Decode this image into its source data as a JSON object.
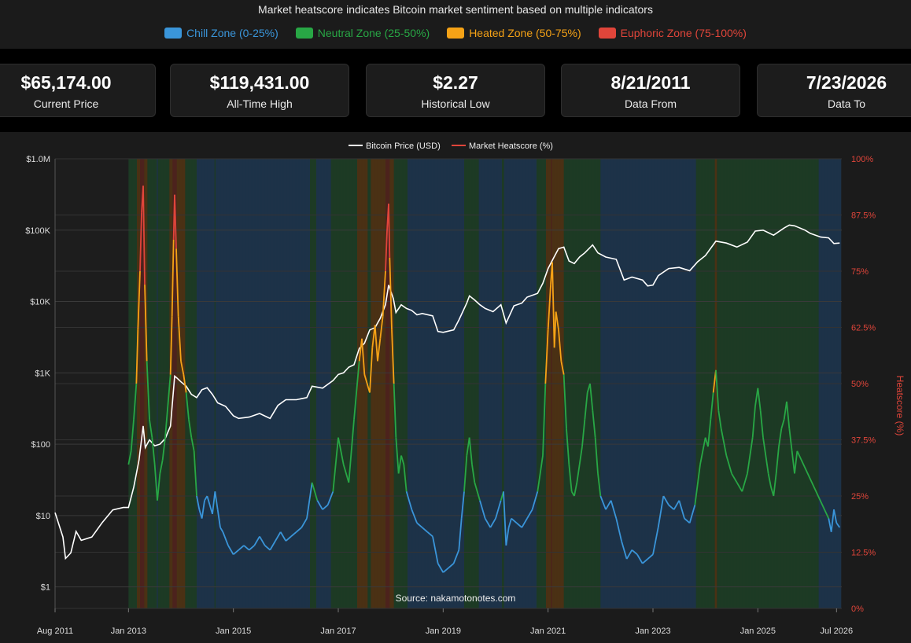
{
  "header": {
    "subtitle": "Market heatscore indicates Bitcoin market sentiment based on multiple indicators",
    "legend": [
      {
        "label": "Chill Zone (0-25%)",
        "color": "#3a95d9"
      },
      {
        "label": "Neutral Zone (25-50%)",
        "color": "#28a745"
      },
      {
        "label": "Heated Zone (50-75%)",
        "color": "#f5a216"
      },
      {
        "label": "Euphoric Zone (75-100%)",
        "color": "#e0453a"
      }
    ]
  },
  "stats": [
    {
      "value": "$65,174.00",
      "label": "Current Price"
    },
    {
      "value": "$119,431.00",
      "label": "All-Time High"
    },
    {
      "value": "$2.27",
      "label": "Historical Low"
    },
    {
      "value": "8/21/2011",
      "label": "Data From"
    },
    {
      "value": "7/23/2026",
      "label": "Data To"
    }
  ],
  "chart_data": {
    "type": "line",
    "legend": [
      "Bitcoin Price (USD)",
      "Market Heatscore (%)"
    ],
    "source": "Source: nakamotonotes.com",
    "x_ticks": [
      "Aug 2011",
      "Jan 2013",
      "Jan 2015",
      "Jan 2017",
      "Jan 2019",
      "Jan 2021",
      "Jan 2023",
      "Jan 2025",
      "Jul 2026"
    ],
    "x_tick_years": [
      2011.6,
      2013.0,
      2015.0,
      2017.0,
      2019.0,
      2021.0,
      2023.0,
      2025.0,
      2026.5
    ],
    "y_left_ticks": [
      "$1.0M",
      "$100K",
      "$10K",
      "$1K",
      "$100",
      "$10",
      "$1"
    ],
    "y_left_label": "",
    "y_right_ticks": [
      "100%",
      "87.5%",
      "75%",
      "62.5%",
      "50%",
      "37.5%",
      "25%",
      "12.5%",
      "0%"
    ],
    "y_right_label": "Heatscore (%)",
    "y_left_scale": "log",
    "y_left_range": [
      0.5,
      1000000
    ],
    "y_right_range": [
      0,
      100
    ],
    "x_range": [
      2011.6,
      2026.6
    ],
    "price": {
      "name": "Bitcoin Price (USD)",
      "color": "#ffffff",
      "points": [
        [
          2011.6,
          11
        ],
        [
          2011.75,
          5
        ],
        [
          2011.8,
          2.5
        ],
        [
          2011.9,
          3
        ],
        [
          2012.0,
          6
        ],
        [
          2012.1,
          4.5
        ],
        [
          2012.3,
          5
        ],
        [
          2012.5,
          8
        ],
        [
          2012.7,
          12
        ],
        [
          2012.9,
          13
        ],
        [
          2013.0,
          13
        ],
        [
          2013.1,
          25
        ],
        [
          2013.2,
          60
        ],
        [
          2013.28,
          180
        ],
        [
          2013.32,
          90
        ],
        [
          2013.4,
          115
        ],
        [
          2013.5,
          95
        ],
        [
          2013.6,
          100
        ],
        [
          2013.7,
          120
        ],
        [
          2013.8,
          180
        ],
        [
          2013.88,
          900
        ],
        [
          2013.92,
          850
        ],
        [
          2014.0,
          750
        ],
        [
          2014.1,
          650
        ],
        [
          2014.2,
          500
        ],
        [
          2014.3,
          450
        ],
        [
          2014.4,
          580
        ],
        [
          2014.5,
          620
        ],
        [
          2014.6,
          500
        ],
        [
          2014.7,
          380
        ],
        [
          2014.85,
          340
        ],
        [
          2015.0,
          250
        ],
        [
          2015.1,
          230
        ],
        [
          2015.3,
          240
        ],
        [
          2015.5,
          270
        ],
        [
          2015.7,
          230
        ],
        [
          2015.85,
          350
        ],
        [
          2016.0,
          420
        ],
        [
          2016.2,
          420
        ],
        [
          2016.4,
          450
        ],
        [
          2016.5,
          650
        ],
        [
          2016.7,
          610
        ],
        [
          2016.9,
          780
        ],
        [
          2017.0,
          950
        ],
        [
          2017.1,
          1000
        ],
        [
          2017.2,
          1200
        ],
        [
          2017.3,
          1300
        ],
        [
          2017.4,
          2200
        ],
        [
          2017.5,
          2600
        ],
        [
          2017.6,
          4000
        ],
        [
          2017.7,
          4300
        ],
        [
          2017.8,
          5800
        ],
        [
          2017.9,
          9000
        ],
        [
          2017.96,
          17000
        ],
        [
          2018.05,
          11000
        ],
        [
          2018.1,
          7000
        ],
        [
          2018.2,
          9000
        ],
        [
          2018.3,
          8000
        ],
        [
          2018.4,
          7500
        ],
        [
          2018.5,
          6500
        ],
        [
          2018.6,
          6800
        ],
        [
          2018.8,
          6300
        ],
        [
          2018.9,
          3800
        ],
        [
          2019.0,
          3700
        ],
        [
          2019.2,
          4000
        ],
        [
          2019.3,
          5500
        ],
        [
          2019.45,
          9500
        ],
        [
          2019.5,
          12000
        ],
        [
          2019.6,
          10500
        ],
        [
          2019.7,
          9000
        ],
        [
          2019.8,
          8000
        ],
        [
          2019.95,
          7200
        ],
        [
          2020.1,
          9000
        ],
        [
          2020.2,
          5000
        ],
        [
          2020.35,
          8700
        ],
        [
          2020.5,
          9500
        ],
        [
          2020.6,
          11500
        ],
        [
          2020.8,
          13000
        ],
        [
          2020.9,
          18000
        ],
        [
          2021.0,
          29000
        ],
        [
          2021.1,
          40000
        ],
        [
          2021.2,
          55000
        ],
        [
          2021.3,
          58000
        ],
        [
          2021.4,
          37000
        ],
        [
          2021.5,
          34000
        ],
        [
          2021.6,
          42000
        ],
        [
          2021.7,
          48000
        ],
        [
          2021.85,
          62000
        ],
        [
          2021.95,
          48000
        ],
        [
          2022.1,
          42000
        ],
        [
          2022.3,
          39000
        ],
        [
          2022.45,
          20000
        ],
        [
          2022.6,
          22000
        ],
        [
          2022.8,
          20000
        ],
        [
          2022.9,
          16500
        ],
        [
          2023.0,
          17000
        ],
        [
          2023.1,
          23000
        ],
        [
          2023.3,
          29000
        ],
        [
          2023.5,
          30000
        ],
        [
          2023.7,
          27000
        ],
        [
          2023.85,
          36000
        ],
        [
          2024.0,
          44000
        ],
        [
          2024.2,
          70000
        ],
        [
          2024.4,
          66000
        ],
        [
          2024.6,
          58000
        ],
        [
          2024.8,
          68000
        ],
        [
          2024.95,
          97000
        ],
        [
          2025.1,
          100000
        ],
        [
          2025.3,
          85000
        ],
        [
          2025.5,
          107000
        ],
        [
          2025.6,
          118000
        ],
        [
          2025.7,
          115000
        ],
        [
          2025.9,
          100000
        ],
        [
          2026.0,
          90000
        ],
        [
          2026.2,
          80000
        ],
        [
          2026.35,
          78000
        ],
        [
          2026.45,
          65000
        ],
        [
          2026.56,
          66000
        ]
      ]
    },
    "heatscore": {
      "name": "Market Heatscore (%)",
      "color": "#e0453a",
      "points": [
        [
          2013.0,
          32
        ],
        [
          2013.05,
          35
        ],
        [
          2013.1,
          42
        ],
        [
          2013.15,
          50
        ],
        [
          2013.18,
          62
        ],
        [
          2013.22,
          75
        ],
        [
          2013.25,
          88
        ],
        [
          2013.28,
          94
        ],
        [
          2013.31,
          72
        ],
        [
          2013.35,
          55
        ],
        [
          2013.4,
          42
        ],
        [
          2013.45,
          38
        ],
        [
          2013.5,
          32
        ],
        [
          2013.55,
          24
        ],
        [
          2013.6,
          30
        ],
        [
          2013.65,
          33
        ],
        [
          2013.7,
          38
        ],
        [
          2013.75,
          45
        ],
        [
          2013.8,
          52
        ],
        [
          2013.83,
          65
        ],
        [
          2013.86,
          82
        ],
        [
          2013.88,
          92
        ],
        [
          2013.91,
          80
        ],
        [
          2013.95,
          65
        ],
        [
          2014.0,
          55
        ],
        [
          2014.05,
          52
        ],
        [
          2014.1,
          48
        ],
        [
          2014.15,
          42
        ],
        [
          2014.2,
          38
        ],
        [
          2014.25,
          35
        ],
        [
          2014.3,
          25
        ],
        [
          2014.35,
          22
        ],
        [
          2014.4,
          20
        ],
        [
          2014.45,
          24
        ],
        [
          2014.5,
          25
        ],
        [
          2014.55,
          23
        ],
        [
          2014.6,
          21
        ],
        [
          2014.65,
          26
        ],
        [
          2014.7,
          22
        ],
        [
          2014.75,
          18
        ],
        [
          2014.8,
          17
        ],
        [
          2014.9,
          14
        ],
        [
          2015.0,
          12
        ],
        [
          2015.1,
          13
        ],
        [
          2015.2,
          14
        ],
        [
          2015.3,
          13
        ],
        [
          2015.4,
          14
        ],
        [
          2015.5,
          16
        ],
        [
          2015.6,
          14
        ],
        [
          2015.7,
          13
        ],
        [
          2015.8,
          15
        ],
        [
          2015.9,
          17
        ],
        [
          2016.0,
          15
        ],
        [
          2016.1,
          16
        ],
        [
          2016.2,
          17
        ],
        [
          2016.3,
          18
        ],
        [
          2016.4,
          20
        ],
        [
          2016.5,
          28
        ],
        [
          2016.6,
          24
        ],
        [
          2016.7,
          22
        ],
        [
          2016.8,
          23
        ],
        [
          2016.9,
          26
        ],
        [
          2017.0,
          38
        ],
        [
          2017.1,
          32
        ],
        [
          2017.2,
          28
        ],
        [
          2017.3,
          42
        ],
        [
          2017.4,
          55
        ],
        [
          2017.45,
          60
        ],
        [
          2017.5,
          52
        ],
        [
          2017.6,
          48
        ],
        [
          2017.65,
          58
        ],
        [
          2017.7,
          63
        ],
        [
          2017.75,
          55
        ],
        [
          2017.8,
          60
        ],
        [
          2017.85,
          65
        ],
        [
          2017.9,
          75
        ],
        [
          2017.93,
          84
        ],
        [
          2017.96,
          90
        ],
        [
          2017.98,
          78
        ],
        [
          2018.02,
          62
        ],
        [
          2018.06,
          50
        ],
        [
          2018.1,
          38
        ],
        [
          2018.15,
          30
        ],
        [
          2018.2,
          34
        ],
        [
          2018.25,
          32
        ],
        [
          2018.3,
          26
        ],
        [
          2018.4,
          22
        ],
        [
          2018.5,
          19
        ],
        [
          2018.6,
          18
        ],
        [
          2018.7,
          17
        ],
        [
          2018.8,
          16
        ],
        [
          2018.9,
          10
        ],
        [
          2019.0,
          8
        ],
        [
          2019.1,
          9
        ],
        [
          2019.2,
          10
        ],
        [
          2019.3,
          13
        ],
        [
          2019.35,
          20
        ],
        [
          2019.4,
          26
        ],
        [
          2019.45,
          34
        ],
        [
          2019.5,
          38
        ],
        [
          2019.55,
          32
        ],
        [
          2019.6,
          28
        ],
        [
          2019.7,
          24
        ],
        [
          2019.8,
          20
        ],
        [
          2019.9,
          18
        ],
        [
          2020.0,
          20
        ],
        [
          2020.1,
          24
        ],
        [
          2020.15,
          26
        ],
        [
          2020.2,
          14
        ],
        [
          2020.25,
          18
        ],
        [
          2020.3,
          20
        ],
        [
          2020.4,
          19
        ],
        [
          2020.5,
          18
        ],
        [
          2020.6,
          20
        ],
        [
          2020.7,
          22
        ],
        [
          2020.8,
          26
        ],
        [
          2020.9,
          34
        ],
        [
          2020.95,
          50
        ],
        [
          2021.0,
          62
        ],
        [
          2021.05,
          72
        ],
        [
          2021.08,
          77
        ],
        [
          2021.12,
          58
        ],
        [
          2021.15,
          66
        ],
        [
          2021.2,
          62
        ],
        [
          2021.25,
          55
        ],
        [
          2021.3,
          52
        ],
        [
          2021.35,
          40
        ],
        [
          2021.4,
          32
        ],
        [
          2021.45,
          26
        ],
        [
          2021.5,
          25
        ],
        [
          2021.55,
          28
        ],
        [
          2021.6,
          32
        ],
        [
          2021.65,
          36
        ],
        [
          2021.7,
          42
        ],
        [
          2021.75,
          48
        ],
        [
          2021.8,
          50
        ],
        [
          2021.85,
          44
        ],
        [
          2021.9,
          38
        ],
        [
          2021.95,
          30
        ],
        [
          2022.0,
          25
        ],
        [
          2022.1,
          22
        ],
        [
          2022.2,
          24
        ],
        [
          2022.3,
          20
        ],
        [
          2022.4,
          15
        ],
        [
          2022.5,
          11
        ],
        [
          2022.6,
          13
        ],
        [
          2022.7,
          12
        ],
        [
          2022.8,
          10
        ],
        [
          2022.9,
          11
        ],
        [
          2023.0,
          12
        ],
        [
          2023.1,
          18
        ],
        [
          2023.2,
          25
        ],
        [
          2023.3,
          23
        ],
        [
          2023.4,
          22
        ],
        [
          2023.5,
          24
        ],
        [
          2023.6,
          20
        ],
        [
          2023.7,
          19
        ],
        [
          2023.8,
          23
        ],
        [
          2023.9,
          32
        ],
        [
          2024.0,
          38
        ],
        [
          2024.05,
          36
        ],
        [
          2024.1,
          42
        ],
        [
          2024.15,
          48
        ],
        [
          2024.2,
          53
        ],
        [
          2024.25,
          44
        ],
        [
          2024.3,
          40
        ],
        [
          2024.4,
          34
        ],
        [
          2024.5,
          30
        ],
        [
          2024.6,
          28
        ],
        [
          2024.7,
          26
        ],
        [
          2024.8,
          30
        ],
        [
          2024.9,
          38
        ],
        [
          2024.95,
          45
        ],
        [
          2025.0,
          49
        ],
        [
          2025.05,
          44
        ],
        [
          2025.1,
          38
        ],
        [
          2025.2,
          30
        ],
        [
          2025.25,
          27
        ],
        [
          2025.3,
          25
        ],
        [
          2025.35,
          30
        ],
        [
          2025.4,
          36
        ],
        [
          2025.45,
          40
        ],
        [
          2025.5,
          42
        ],
        [
          2025.55,
          46
        ],
        [
          2025.6,
          40
        ],
        [
          2025.65,
          35
        ],
        [
          2025.7,
          30
        ],
        [
          2025.75,
          35
        ],
        [
          2026.35,
          20
        ],
        [
          2026.4,
          17
        ],
        [
          2026.45,
          22
        ],
        [
          2026.5,
          19
        ],
        [
          2026.56,
          18
        ]
      ]
    },
    "zones": {
      "chill": {
        "range": [
          0,
          25
        ],
        "color": "#3a95d9"
      },
      "neutral": {
        "range": [
          25,
          50
        ],
        "color": "#28a745"
      },
      "heated": {
        "range": [
          50,
          75
        ],
        "color": "#f5a216"
      },
      "euphoric": {
        "range": [
          75,
          100
        ],
        "color": "#e0453a"
      }
    }
  }
}
